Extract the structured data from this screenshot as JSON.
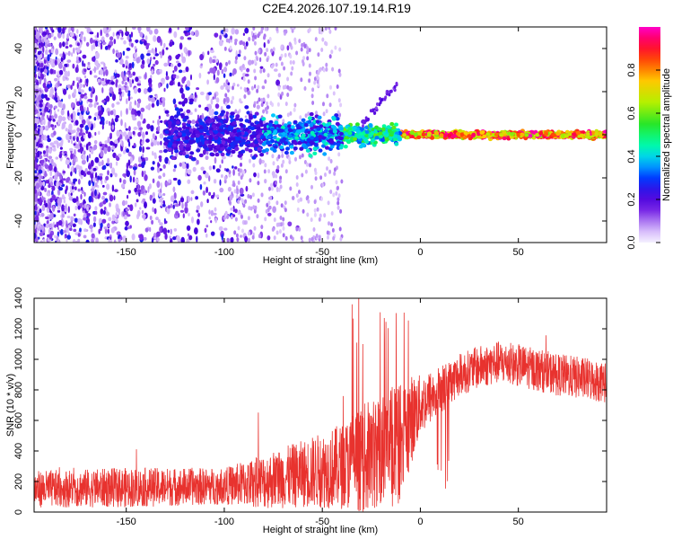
{
  "title": "C2E4.2026.107.19.14.R19",
  "chart_data": [
    {
      "type": "heatmap",
      "xlabel": "Height of straight line (km)",
      "ylabel": "Frequency (Hz)",
      "xlim": [
        -197,
        95
      ],
      "ylim": [
        -50,
        50
      ],
      "xticks": [
        -150,
        -100,
        -50,
        0,
        50
      ],
      "yticks": [
        -40,
        -20,
        0,
        20,
        40
      ],
      "colorbar": {
        "label": "Normalized spectral amplitude",
        "range": [
          0,
          1
        ],
        "ticks": [
          0.0,
          0.2,
          0.4,
          0.6,
          0.8
        ]
      },
      "description_band": "Carrier band near 0 Hz becomes strong (~0.8-1.0) for heights above ~-20 km; broadband weak noise (~0.1-0.3) below ~-100 km"
    },
    {
      "type": "line",
      "xlabel": "Height of straight line (km)",
      "ylabel": "SNR (10 * v/v)",
      "xlim": [
        -197,
        95
      ],
      "ylim": [
        0,
        1400
      ],
      "xticks": [
        -150,
        -100,
        -50,
        0,
        50
      ],
      "yticks": [
        0,
        200,
        400,
        600,
        800,
        1000,
        1200,
        1400
      ],
      "series": [
        {
          "name": "SNR",
          "color": "#e8322e",
          "envelope_x": [
            -197,
            -150,
            -100,
            -80,
            -60,
            -40,
            -30,
            -20,
            -10,
            -5,
            0,
            10,
            20,
            30,
            40,
            50,
            60,
            70,
            80,
            95
          ],
          "envelope_mean": [
            150,
            160,
            170,
            200,
            250,
            300,
            350,
            400,
            450,
            600,
            700,
            800,
            900,
            950,
            980,
            960,
            930,
            900,
            880,
            850
          ],
          "envelope_spread": [
            120,
            130,
            120,
            180,
            220,
            280,
            350,
            380,
            400,
            300,
            200,
            160,
            140,
            140,
            140,
            140,
            140,
            140,
            140,
            140
          ]
        }
      ]
    }
  ]
}
